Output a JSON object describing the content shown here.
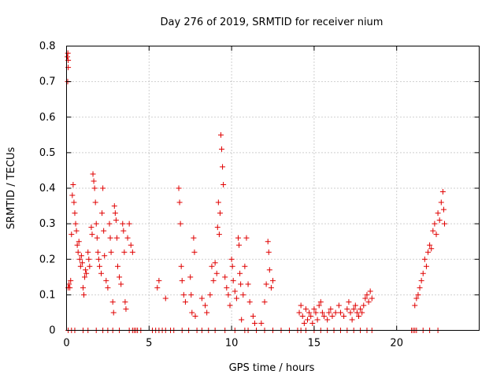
{
  "chart_data": {
    "type": "scatter",
    "title": "Day 276 of 2019, SRMTID for receiver nium",
    "xlabel": "GPS time / hours",
    "ylabel": "SRMTID / TECUs",
    "xlim": [
      0,
      25
    ],
    "ylim": [
      0,
      0.8
    ],
    "xticks": [
      0,
      5,
      10,
      15,
      20
    ],
    "yticks": [
      0,
      0.1,
      0.2,
      0.3,
      0.4,
      0.5,
      0.6,
      0.7,
      0.8
    ],
    "xtick_labels": [
      "0",
      "5",
      "10",
      "15",
      "20"
    ],
    "ytick_labels": [
      "0",
      "0.1",
      "0.2",
      "0.3",
      "0.4",
      "0.5",
      "0.6",
      "0.7",
      "0.8"
    ],
    "grid": true,
    "marker": "plus",
    "color": "#e00000",
    "series": [
      {
        "name": "SRMTID",
        "points": [
          [
            0.05,
            0.77
          ],
          [
            0.08,
            0.78
          ],
          [
            0.1,
            0.76
          ],
          [
            0.07,
            0.7
          ],
          [
            0.1,
            0.74
          ],
          [
            0.1,
            0.12
          ],
          [
            0.15,
            0.13
          ],
          [
            0.2,
            0.12
          ],
          [
            0.25,
            0.14
          ],
          [
            0.3,
            0.27
          ],
          [
            0.35,
            0.38
          ],
          [
            0.4,
            0.41
          ],
          [
            0.45,
            0.36
          ],
          [
            0.5,
            0.33
          ],
          [
            0.55,
            0.3
          ],
          [
            0.6,
            0.28
          ],
          [
            0.65,
            0.24
          ],
          [
            0.7,
            0.22
          ],
          [
            0.75,
            0.25
          ],
          [
            0.8,
            0.2
          ],
          [
            0.85,
            0.18
          ],
          [
            0.9,
            0.21
          ],
          [
            0.95,
            0.19
          ],
          [
            1.0,
            0.12
          ],
          [
            1.05,
            0.1
          ],
          [
            1.1,
            0.15
          ],
          [
            1.15,
            0.17
          ],
          [
            1.2,
            0.16
          ],
          [
            1.3,
            0.22
          ],
          [
            1.35,
            0.2
          ],
          [
            1.4,
            0.18
          ],
          [
            1.5,
            0.29
          ],
          [
            1.55,
            0.27
          ],
          [
            1.6,
            0.44
          ],
          [
            1.65,
            0.42
          ],
          [
            1.7,
            0.4
          ],
          [
            1.75,
            0.36
          ],
          [
            1.8,
            0.3
          ],
          [
            1.85,
            0.26
          ],
          [
            1.9,
            0.22
          ],
          [
            1.95,
            0.2
          ],
          [
            2.0,
            0.18
          ],
          [
            2.1,
            0.16
          ],
          [
            2.15,
            0.33
          ],
          [
            2.2,
            0.4
          ],
          [
            2.25,
            0.28
          ],
          [
            2.3,
            0.21
          ],
          [
            2.4,
            0.14
          ],
          [
            2.5,
            0.12
          ],
          [
            2.6,
            0.3
          ],
          [
            2.65,
            0.26
          ],
          [
            2.7,
            0.22
          ],
          [
            2.8,
            0.08
          ],
          [
            2.85,
            0.05
          ],
          [
            2.9,
            0.35
          ],
          [
            2.95,
            0.33
          ],
          [
            3.0,
            0.31
          ],
          [
            3.05,
            0.26
          ],
          [
            3.1,
            0.18
          ],
          [
            3.2,
            0.15
          ],
          [
            3.3,
            0.13
          ],
          [
            3.4,
            0.3
          ],
          [
            3.45,
            0.28
          ],
          [
            3.5,
            0.22
          ],
          [
            3.55,
            0.08
          ],
          [
            3.6,
            0.06
          ],
          [
            3.7,
            0.26
          ],
          [
            3.8,
            0.3
          ],
          [
            3.9,
            0.24
          ],
          [
            4.0,
            0.22
          ],
          [
            5.5,
            0.12
          ],
          [
            5.6,
            0.14
          ],
          [
            6.0,
            0.09
          ],
          [
            6.8,
            0.4
          ],
          [
            6.85,
            0.36
          ],
          [
            6.9,
            0.3
          ],
          [
            6.95,
            0.18
          ],
          [
            7.0,
            0.14
          ],
          [
            7.1,
            0.1
          ],
          [
            7.2,
            0.08
          ],
          [
            7.5,
            0.15
          ],
          [
            7.55,
            0.1
          ],
          [
            7.6,
            0.05
          ],
          [
            7.7,
            0.26
          ],
          [
            7.75,
            0.22
          ],
          [
            7.8,
            0.04
          ],
          [
            8.2,
            0.09
          ],
          [
            8.4,
            0.07
          ],
          [
            8.5,
            0.05
          ],
          [
            8.7,
            0.1
          ],
          [
            8.8,
            0.18
          ],
          [
            8.9,
            0.14
          ],
          [
            9.0,
            0.19
          ],
          [
            9.1,
            0.16
          ],
          [
            9.15,
            0.29
          ],
          [
            9.2,
            0.36
          ],
          [
            9.25,
            0.27
          ],
          [
            9.3,
            0.33
          ],
          [
            9.35,
            0.55
          ],
          [
            9.4,
            0.51
          ],
          [
            9.45,
            0.46
          ],
          [
            9.5,
            0.41
          ],
          [
            9.6,
            0.15
          ],
          [
            9.7,
            0.12
          ],
          [
            9.8,
            0.1
          ],
          [
            9.9,
            0.07
          ],
          [
            10.0,
            0.2
          ],
          [
            10.05,
            0.18
          ],
          [
            10.1,
            0.14
          ],
          [
            10.2,
            0.11
          ],
          [
            10.3,
            0.09
          ],
          [
            10.4,
            0.26
          ],
          [
            10.45,
            0.24
          ],
          [
            10.5,
            0.16
          ],
          [
            10.55,
            0.13
          ],
          [
            10.6,
            0.03
          ],
          [
            10.7,
            0.1
          ],
          [
            10.8,
            0.18
          ],
          [
            10.9,
            0.26
          ],
          [
            11.0,
            0.13
          ],
          [
            11.1,
            0.08
          ],
          [
            11.3,
            0.04
          ],
          [
            11.4,
            0.02
          ],
          [
            11.8,
            0.02
          ],
          [
            12.0,
            0.08
          ],
          [
            12.1,
            0.13
          ],
          [
            12.2,
            0.25
          ],
          [
            12.25,
            0.22
          ],
          [
            12.3,
            0.17
          ],
          [
            12.4,
            0.12
          ],
          [
            12.5,
            0.14
          ],
          [
            14.1,
            0.05
          ],
          [
            14.2,
            0.07
          ],
          [
            14.3,
            0.04
          ],
          [
            14.4,
            0.02
          ],
          [
            14.5,
            0.06
          ],
          [
            14.6,
            0.03
          ],
          [
            14.7,
            0.05
          ],
          [
            14.8,
            0.04
          ],
          [
            14.9,
            0.02
          ],
          [
            15.0,
            0.06
          ],
          [
            15.1,
            0.05
          ],
          [
            15.2,
            0.03
          ],
          [
            15.3,
            0.07
          ],
          [
            15.4,
            0.08
          ],
          [
            15.5,
            0.05
          ],
          [
            15.6,
            0.04
          ],
          [
            15.8,
            0.03
          ],
          [
            15.9,
            0.05
          ],
          [
            16.0,
            0.06
          ],
          [
            16.1,
            0.04
          ],
          [
            16.3,
            0.05
          ],
          [
            16.5,
            0.07
          ],
          [
            16.6,
            0.05
          ],
          [
            16.8,
            0.04
          ],
          [
            17.0,
            0.06
          ],
          [
            17.1,
            0.08
          ],
          [
            17.2,
            0.05
          ],
          [
            17.3,
            0.03
          ],
          [
            17.4,
            0.06
          ],
          [
            17.5,
            0.07
          ],
          [
            17.6,
            0.05
          ],
          [
            17.7,
            0.04
          ],
          [
            17.8,
            0.06
          ],
          [
            17.9,
            0.05
          ],
          [
            18.0,
            0.07
          ],
          [
            18.1,
            0.09
          ],
          [
            18.2,
            0.1
          ],
          [
            18.3,
            0.08
          ],
          [
            18.4,
            0.11
          ],
          [
            18.5,
            0.09
          ],
          [
            21.1,
            0.07
          ],
          [
            21.2,
            0.09
          ],
          [
            21.3,
            0.1
          ],
          [
            21.4,
            0.12
          ],
          [
            21.5,
            0.14
          ],
          [
            21.6,
            0.16
          ],
          [
            21.7,
            0.2
          ],
          [
            21.8,
            0.18
          ],
          [
            21.9,
            0.22
          ],
          [
            22.0,
            0.24
          ],
          [
            22.1,
            0.23
          ],
          [
            22.2,
            0.28
          ],
          [
            22.3,
            0.3
          ],
          [
            22.4,
            0.27
          ],
          [
            22.5,
            0.33
          ],
          [
            22.6,
            0.31
          ],
          [
            22.7,
            0.36
          ],
          [
            22.8,
            0.39
          ],
          [
            22.85,
            0.34
          ],
          [
            22.9,
            0.3
          ]
        ],
        "zero_x": [
          0.1,
          0.3,
          0.5,
          1.0,
          1.3,
          1.8,
          2.2,
          2.5,
          2.8,
          3.2,
          3.8,
          4.0,
          4.1,
          4.2,
          4.3,
          4.5,
          5.2,
          5.4,
          5.6,
          5.8,
          6.0,
          6.3,
          6.5,
          7.0,
          7.4,
          7.9,
          8.2,
          8.6,
          9.0,
          9.6,
          10.2,
          10.8,
          11.0,
          11.5,
          12.0,
          12.5,
          13.0,
          13.5,
          14.0,
          14.2,
          14.5,
          15.0,
          15.4,
          15.8,
          16.2,
          16.6,
          17.0,
          17.4,
          17.8,
          18.2,
          18.5,
          20.9,
          21.0,
          21.1,
          21.2,
          21.6,
          22.0,
          22.5
        ]
      }
    ]
  }
}
